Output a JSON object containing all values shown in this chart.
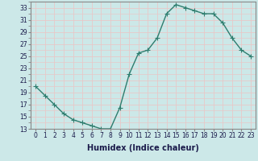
{
  "xlabel": "Humidex (Indice chaleur)",
  "x_values": [
    0,
    1,
    2,
    3,
    4,
    5,
    6,
    7,
    8,
    9,
    10,
    11,
    12,
    13,
    14,
    15,
    16,
    17,
    18,
    19,
    20,
    21,
    22,
    23
  ],
  "y_values": [
    20,
    18.5,
    17,
    15.5,
    14.5,
    14,
    13.5,
    13,
    13,
    16.5,
    22,
    25.5,
    26,
    28,
    32,
    33.5,
    33,
    32.5,
    32,
    32,
    30.5,
    28,
    26,
    25
  ],
  "line_color": "#2e7d6e",
  "marker_color": "#2e7d6e",
  "bg_color": "#cce8e8",
  "grid_color": "#e8c8c8",
  "ylim": [
    13,
    34
  ],
  "xlim": [
    -0.5,
    23.5
  ],
  "yticks": [
    13,
    15,
    17,
    19,
    21,
    23,
    25,
    27,
    29,
    31,
    33
  ],
  "xticks": [
    0,
    1,
    2,
    3,
    4,
    5,
    6,
    7,
    8,
    9,
    10,
    11,
    12,
    13,
    14,
    15,
    16,
    17,
    18,
    19,
    20,
    21,
    22,
    23
  ],
  "tick_fontsize": 5.5,
  "label_fontsize": 7,
  "marker_size": 2.0,
  "line_width": 1.0
}
